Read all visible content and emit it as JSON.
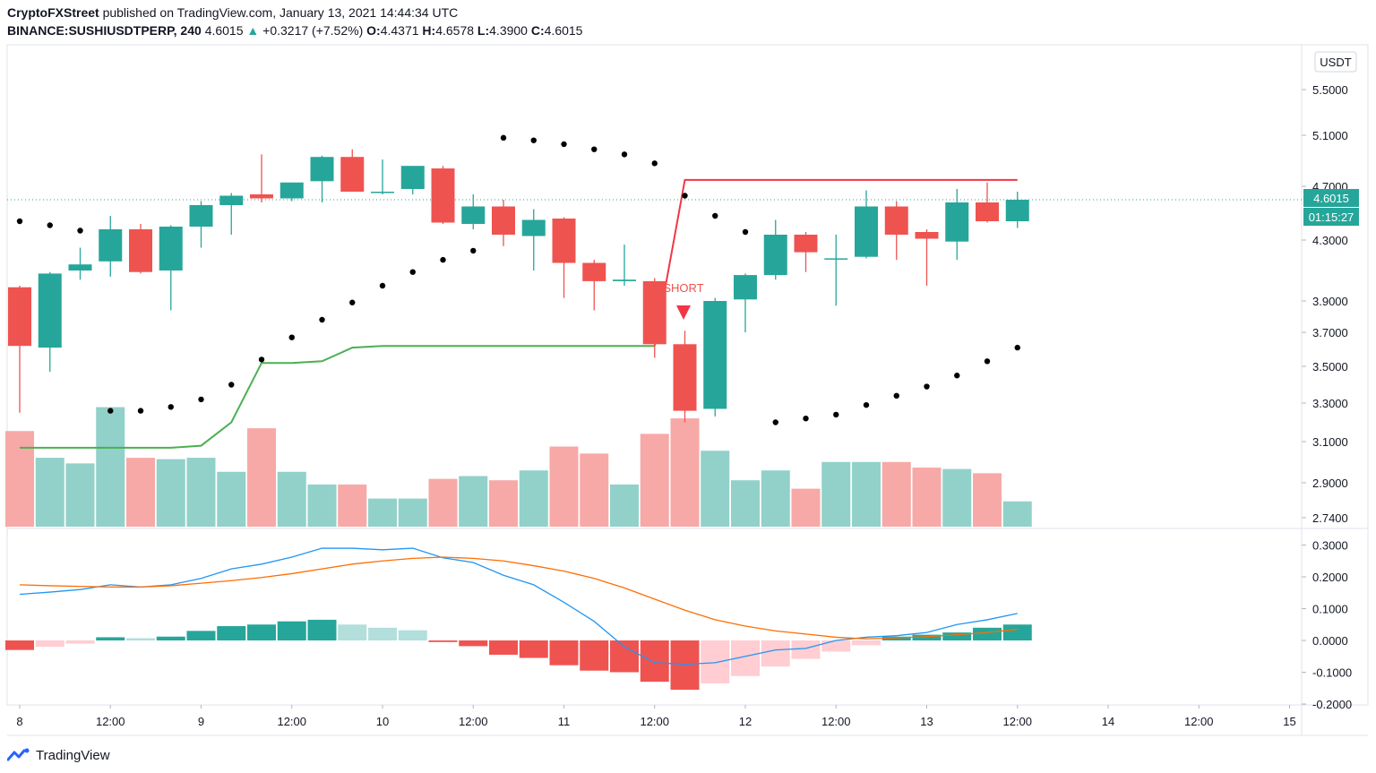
{
  "header": {
    "publisher": "CryptoFXStreet",
    "published_text": "published on TradingView.com, January 13, 2021 14:44:34 UTC",
    "symbol": "BINANCE:SUSHIUSDTPERP, 240",
    "last": "4.6015",
    "arrow": "▲",
    "change": "+0.3217 (+7.52%)",
    "o_label": "O:",
    "o": "4.4371",
    "h_label": "H:",
    "h": "4.6578",
    "l_label": "L:",
    "l": "4.3900",
    "c_label": "C:",
    "c": "4.6015"
  },
  "currency": "USDT",
  "price_tag": "4.6015",
  "countdown": "01:15:27",
  "short_label": "SHORT",
  "brand": "TradingView",
  "colors": {
    "up": "#26a69a",
    "down": "#ef5350",
    "vol_up": "#91d1c9",
    "vol_down": "#f7a9a7",
    "macd": "#2196f3",
    "signal": "#ff6d00",
    "supertrend_up": "#4caf50",
    "supertrend_down": "#f23645",
    "sar": "#000000"
  },
  "chart_data": [
    {
      "type": "candlestick",
      "panel": "price",
      "y_ticks": [
        "5.5000",
        "5.1000",
        "4.7000",
        "4.3000",
        "3.9000",
        "3.7000",
        "3.5000",
        "3.3000",
        "3.1000",
        "2.9000",
        "2.7400"
      ],
      "x_ticks": [
        "8",
        "12:00",
        "9",
        "12:00",
        "10",
        "12:00",
        "11",
        "12:00",
        "12",
        "12:00",
        "13",
        "12:00",
        "14",
        "12:00",
        "15"
      ],
      "candles": [
        {
          "o": 3.99,
          "h": 4.0,
          "l": 3.25,
          "c": 3.62
        },
        {
          "o": 3.61,
          "h": 4.09,
          "l": 3.47,
          "c": 4.08
        },
        {
          "o": 4.1,
          "h": 4.25,
          "l": 4.04,
          "c": 4.14
        },
        {
          "o": 4.16,
          "h": 4.48,
          "l": 4.06,
          "c": 4.38
        },
        {
          "o": 4.38,
          "h": 4.42,
          "l": 4.08,
          "c": 4.09
        },
        {
          "o": 4.1,
          "h": 4.41,
          "l": 3.84,
          "c": 4.4
        },
        {
          "o": 4.4,
          "h": 4.59,
          "l": 4.25,
          "c": 4.56
        },
        {
          "o": 4.56,
          "h": 4.65,
          "l": 4.34,
          "c": 4.63
        },
        {
          "o": 4.64,
          "h": 4.95,
          "l": 4.58,
          "c": 4.61
        },
        {
          "o": 4.61,
          "h": 4.72,
          "l": 4.59,
          "c": 4.73
        },
        {
          "o": 4.74,
          "h": 4.94,
          "l": 4.58,
          "c": 4.93
        },
        {
          "o": 4.93,
          "h": 4.99,
          "l": 4.66,
          "c": 4.66
        },
        {
          "o": 4.66,
          "h": 4.91,
          "l": 4.64,
          "c": 4.66
        },
        {
          "o": 4.68,
          "h": 4.85,
          "l": 4.64,
          "c": 4.86
        },
        {
          "o": 4.84,
          "h": 4.86,
          "l": 4.42,
          "c": 4.43
        },
        {
          "o": 4.42,
          "h": 4.64,
          "l": 4.38,
          "c": 4.55
        },
        {
          "o": 4.55,
          "h": 4.6,
          "l": 4.26,
          "c": 4.34
        },
        {
          "o": 4.33,
          "h": 4.53,
          "l": 4.1,
          "c": 4.45
        },
        {
          "o": 4.46,
          "h": 4.47,
          "l": 3.92,
          "c": 4.15
        },
        {
          "o": 4.15,
          "h": 4.17,
          "l": 3.84,
          "c": 4.03
        },
        {
          "o": 4.03,
          "h": 4.27,
          "l": 4.0,
          "c": 4.04
        },
        {
          "o": 4.03,
          "h": 4.05,
          "l": 3.55,
          "c": 3.63
        },
        {
          "o": 3.63,
          "h": 3.71,
          "l": 3.2,
          "c": 3.26
        },
        {
          "o": 3.27,
          "h": 3.92,
          "l": 3.23,
          "c": 3.9
        },
        {
          "o": 3.91,
          "h": 4.08,
          "l": 3.7,
          "c": 4.07
        },
        {
          "o": 4.07,
          "h": 4.45,
          "l": 4.04,
          "c": 4.34
        },
        {
          "o": 4.34,
          "h": 4.36,
          "l": 4.09,
          "c": 4.22
        },
        {
          "o": 4.18,
          "h": 4.34,
          "l": 3.87,
          "c": 4.18
        },
        {
          "o": 4.19,
          "h": 4.67,
          "l": 4.18,
          "c": 4.55
        },
        {
          "o": 4.55,
          "h": 4.59,
          "l": 4.17,
          "c": 4.34
        },
        {
          "o": 4.36,
          "h": 4.38,
          "l": 4.0,
          "c": 4.31
        },
        {
          "o": 4.29,
          "h": 4.68,
          "l": 4.17,
          "c": 4.58
        },
        {
          "o": 4.58,
          "h": 4.73,
          "l": 4.43,
          "c": 4.44
        },
        {
          "o": 4.44,
          "h": 4.66,
          "l": 4.39,
          "c": 4.6
        }
      ],
      "volume_relative": [
        0.68,
        0.49,
        0.45,
        0.85,
        0.49,
        0.48,
        0.49,
        0.39,
        0.7,
        0.39,
        0.3,
        0.3,
        0.2,
        0.2,
        0.34,
        0.36,
        0.33,
        0.4,
        0.57,
        0.52,
        0.3,
        0.66,
        0.77,
        0.54,
        0.33,
        0.4,
        0.27,
        0.46,
        0.46,
        0.46,
        0.42,
        0.41,
        0.38,
        0.18
      ],
      "parabolic_sar": [
        4.44,
        4.41,
        4.37,
        3.26,
        3.26,
        3.28,
        3.32,
        3.4,
        3.54,
        3.67,
        3.78,
        3.89,
        4.0,
        4.09,
        4.17,
        4.23,
        5.08,
        5.06,
        5.03,
        4.99,
        4.95,
        4.88,
        4.63,
        4.48,
        4.36,
        3.2,
        3.22,
        3.24,
        3.29,
        3.34,
        3.39,
        3.45,
        3.53,
        3.61
      ],
      "supertrend_up": [
        3.07,
        3.07,
        3.07,
        3.07,
        3.07,
        3.07,
        3.08,
        3.2,
        3.52,
        3.52,
        3.53,
        3.61,
        3.62,
        3.62,
        3.62,
        3.62,
        3.62,
        3.62,
        3.62,
        3.62,
        3.62,
        3.62
      ],
      "supertrend_down": [
        4.75,
        4.75,
        4.75,
        4.75,
        4.75,
        4.75,
        4.75,
        4.75,
        4.75,
        4.75,
        4.75,
        4.75
      ]
    },
    {
      "type": "line",
      "panel": "macd",
      "y_ticks": [
        "0.3000",
        "0.2000",
        "0.1000",
        "0.0000",
        "-0.1000",
        "-0.2000"
      ],
      "series": [
        {
          "values": [
            0.145,
            0.152,
            0.16,
            0.175,
            0.168,
            0.175,
            0.195,
            0.225,
            0.24,
            0.262,
            0.29,
            0.29,
            0.285,
            0.29,
            0.26,
            0.245,
            0.205,
            0.175,
            0.12,
            0.06,
            -0.02,
            -0.07,
            -0.075,
            -0.07,
            -0.05,
            -0.03,
            -0.025,
            0.0,
            0.01,
            0.015,
            0.025,
            0.05,
            0.065,
            0.085
          ]
        },
        {
          "values": [
            0.175,
            0.172,
            0.17,
            0.168,
            0.168,
            0.172,
            0.18,
            0.188,
            0.198,
            0.21,
            0.225,
            0.24,
            0.25,
            0.258,
            0.262,
            0.258,
            0.25,
            0.235,
            0.218,
            0.195,
            0.165,
            0.13,
            0.095,
            0.065,
            0.045,
            0.03,
            0.02,
            0.01,
            0.005,
            0.008,
            0.012,
            0.018,
            0.025,
            0.035
          ]
        }
      ],
      "histogram": [
        -0.03,
        -0.02,
        -0.01,
        0.01,
        0.007,
        0.012,
        0.03,
        0.045,
        0.05,
        0.06,
        0.065,
        0.05,
        0.04,
        0.032,
        -0.005,
        -0.018,
        -0.045,
        -0.055,
        -0.078,
        -0.095,
        -0.1,
        -0.13,
        -0.155,
        -0.135,
        -0.112,
        -0.082,
        -0.058,
        -0.035,
        -0.015,
        0.012,
        0.018,
        0.025,
        0.04,
        0.05
      ]
    }
  ]
}
